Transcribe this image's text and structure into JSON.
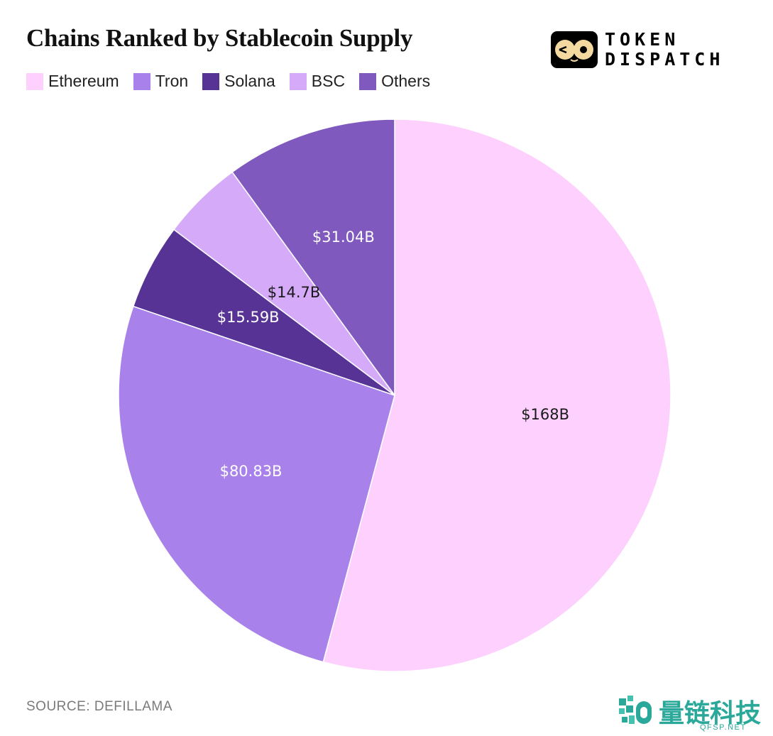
{
  "header": {
    "title": "Chains Ranked by Stablecoin Supply"
  },
  "brand": {
    "line1": "TOKEN",
    "line2": "DISPATCH"
  },
  "legend": [
    {
      "label": "Ethereum",
      "color": "#fdd0fd"
    },
    {
      "label": "Tron",
      "color": "#a882ea"
    },
    {
      "label": "Solana",
      "color": "#573396"
    },
    {
      "label": "BSC",
      "color": "#d5aaf9"
    },
    {
      "label": "Others",
      "color": "#7f59bd"
    }
  ],
  "chart_data": {
    "type": "pie",
    "title": "Chains Ranked by Stablecoin Supply",
    "legend_position": "top-left",
    "start_angle_deg": 0,
    "direction": "clockwise",
    "categories": [
      "Ethereum",
      "Tron",
      "Solana",
      "BSC",
      "Others"
    ],
    "values": [
      168,
      80.83,
      15.59,
      14.7,
      31.04
    ],
    "unit": "B",
    "labels": [
      "$168B",
      "$80.83B",
      "$15.59B",
      "$14.7B",
      "$31.04B"
    ],
    "colors": [
      "#fdd0fd",
      "#a882ea",
      "#573396",
      "#d5aaf9",
      "#7f59bd"
    ],
    "label_colors": [
      "#1a1a1a",
      "#ffffff",
      "#ffffff",
      "#1a1a1a",
      "#ffffff"
    ]
  },
  "footer": {
    "source": "SOURCE: DEFILLAMA"
  },
  "watermark": {
    "text": "量链科技",
    "sub": "QFSP.NET"
  }
}
